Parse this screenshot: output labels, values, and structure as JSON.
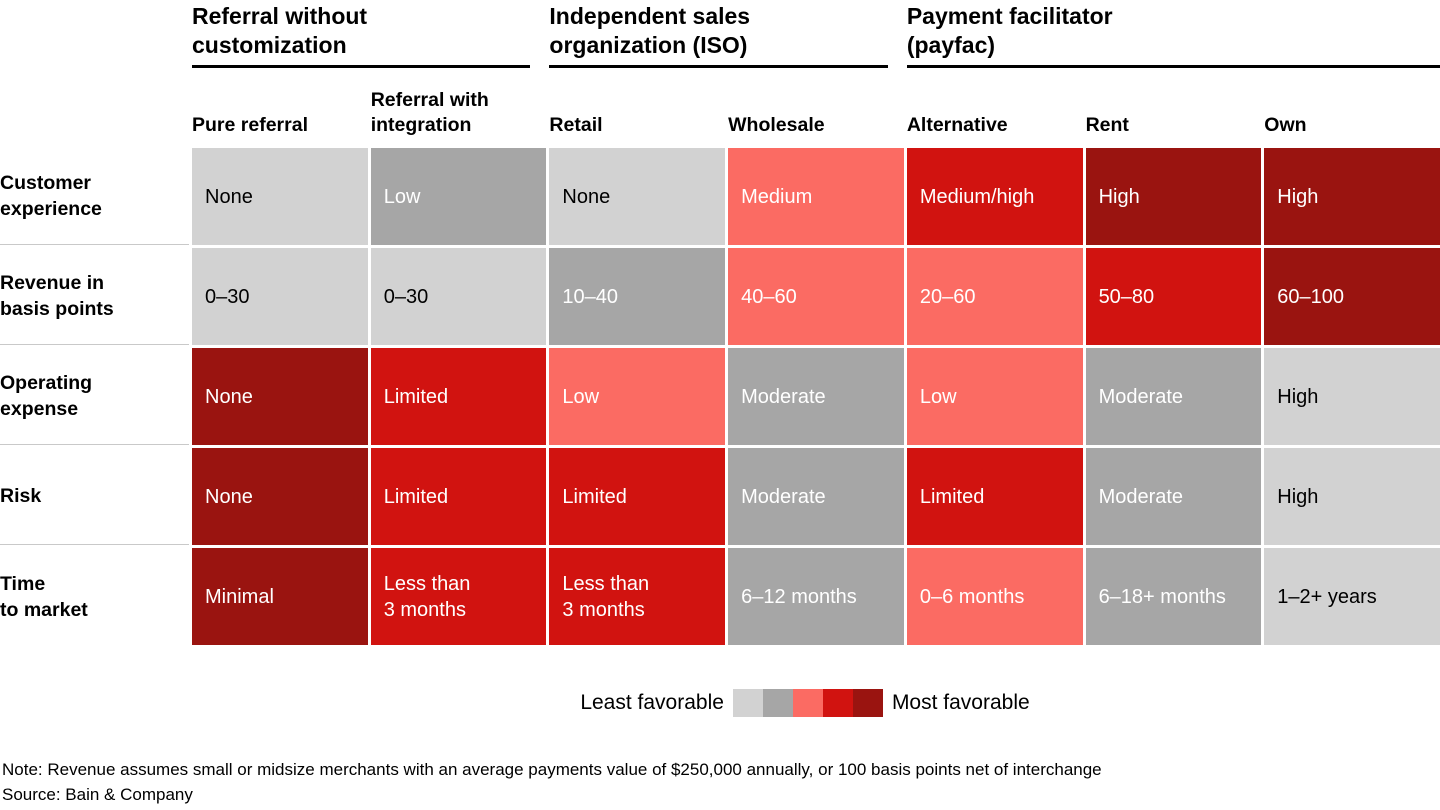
{
  "palette": {
    "level1": "#d2d2d2",
    "level2": "#a6a6a6",
    "level3": "#fb6b63",
    "level4": "#d11310",
    "level5": "#9a1410"
  },
  "table": {
    "groups": [
      {
        "label": "Referral without\ncustomization",
        "span": 2
      },
      {
        "label": "Independent sales\norganization (ISO)",
        "span": 2
      },
      {
        "label": "Payment facilitator\n(payfac)",
        "span": 3
      }
    ],
    "columns": [
      {
        "label": "Pure referral"
      },
      {
        "label": "Referral with\nintegration"
      },
      {
        "label": "Retail"
      },
      {
        "label": "Wholesale"
      },
      {
        "label": "Alternative"
      },
      {
        "label": "Rent"
      },
      {
        "label": "Own"
      }
    ],
    "rows": [
      {
        "label": "Customer\nexperience",
        "cells": [
          {
            "text": "None",
            "level": 1
          },
          {
            "text": "Low",
            "level": 2
          },
          {
            "text": "None",
            "level": 1
          },
          {
            "text": "Medium",
            "level": 3
          },
          {
            "text": "Medium/high",
            "level": 4
          },
          {
            "text": "High",
            "level": 5
          },
          {
            "text": "High",
            "level": 5
          }
        ]
      },
      {
        "label": "Revenue in\nbasis points",
        "cells": [
          {
            "text": "0–30",
            "level": 1
          },
          {
            "text": "0–30",
            "level": 1
          },
          {
            "text": "10–40",
            "level": 2
          },
          {
            "text": "40–60",
            "level": 3
          },
          {
            "text": "20–60",
            "level": 3
          },
          {
            "text": "50–80",
            "level": 4
          },
          {
            "text": "60–100",
            "level": 5
          }
        ]
      },
      {
        "label": "Operating\nexpense",
        "cells": [
          {
            "text": "None",
            "level": 5
          },
          {
            "text": "Limited",
            "level": 4
          },
          {
            "text": "Low",
            "level": 3
          },
          {
            "text": "Moderate",
            "level": 2
          },
          {
            "text": "Low",
            "level": 3
          },
          {
            "text": "Moderate",
            "level": 2
          },
          {
            "text": "High",
            "level": 1
          }
        ]
      },
      {
        "label": "Risk",
        "cells": [
          {
            "text": "None",
            "level": 5
          },
          {
            "text": "Limited",
            "level": 4
          },
          {
            "text": "Limited",
            "level": 4
          },
          {
            "text": "Moderate",
            "level": 2
          },
          {
            "text": "Limited",
            "level": 4
          },
          {
            "text": "Moderate",
            "level": 2
          },
          {
            "text": "High",
            "level": 1
          }
        ]
      },
      {
        "label": "Time\nto market",
        "cells": [
          {
            "text": "Minimal",
            "level": 5
          },
          {
            "text": "Less than\n3 months",
            "level": 4
          },
          {
            "text": "Less than\n3 months",
            "level": 4
          },
          {
            "text": "6–12 months",
            "level": 2
          },
          {
            "text": "0–6 months",
            "level": 3
          },
          {
            "text": "6–18+ months",
            "level": 2
          },
          {
            "text": "1–2+ years",
            "level": 1
          }
        ]
      }
    ]
  },
  "legend": {
    "least_label": "Least favorable",
    "most_label": "Most favorable",
    "swatch_colors": [
      "#d2d2d2",
      "#a6a6a6",
      "#fb6b63",
      "#d11310",
      "#9a1410"
    ]
  },
  "footer": {
    "note": "Note: Revenue assumes small or midsize merchants with an average payments value of $250,000 annually, or 100 basis points net of interchange",
    "source": "Source: Bain & Company"
  },
  "chart_data": {
    "type": "heatmap",
    "title": "",
    "column_groups": [
      {
        "label": "Referral without customization",
        "columns": [
          "Pure referral",
          "Referral with integration"
        ]
      },
      {
        "label": "Independent sales organization (ISO)",
        "columns": [
          "Retail",
          "Wholesale"
        ]
      },
      {
        "label": "Payment facilitator (payfac)",
        "columns": [
          "Alternative",
          "Rent",
          "Own"
        ]
      }
    ],
    "columns": [
      "Pure referral",
      "Referral with integration",
      "Retail",
      "Wholesale",
      "Alternative",
      "Rent",
      "Own"
    ],
    "rows": [
      "Customer experience",
      "Revenue in basis points",
      "Operating expense",
      "Risk",
      "Time to market"
    ],
    "cell_labels": [
      [
        "None",
        "Low",
        "None",
        "Medium",
        "Medium/high",
        "High",
        "High"
      ],
      [
        "0–30",
        "0–30",
        "10–40",
        "40–60",
        "20–60",
        "50–80",
        "60–100"
      ],
      [
        "None",
        "Limited",
        "Low",
        "Moderate",
        "Low",
        "Moderate",
        "High"
      ],
      [
        "None",
        "Limited",
        "Limited",
        "Moderate",
        "Limited",
        "Moderate",
        "High"
      ],
      [
        "Minimal",
        "Less than 3 months",
        "Less than 3 months",
        "6–12 months",
        "0–6 months",
        "6–18+ months",
        "1–2+ years"
      ]
    ],
    "cell_favorability_1least_5most": [
      [
        1,
        2,
        1,
        3,
        4,
        5,
        5
      ],
      [
        1,
        1,
        2,
        3,
        3,
        4,
        5
      ],
      [
        5,
        4,
        3,
        2,
        3,
        2,
        1
      ],
      [
        5,
        4,
        4,
        2,
        4,
        2,
        1
      ],
      [
        5,
        4,
        4,
        2,
        3,
        2,
        1
      ]
    ],
    "color_scale": {
      "1": "#d2d2d2",
      "2": "#a6a6a6",
      "3": "#fb6b63",
      "4": "#d11310",
      "5": "#9a1410"
    },
    "legend": {
      "left": "Least favorable",
      "right": "Most favorable",
      "position": "bottom-center"
    },
    "note": "Note: Revenue assumes small or midsize merchants with an average payments value of $250,000 annually, or 100 basis points net of interchange",
    "source": "Source: Bain & Company"
  }
}
